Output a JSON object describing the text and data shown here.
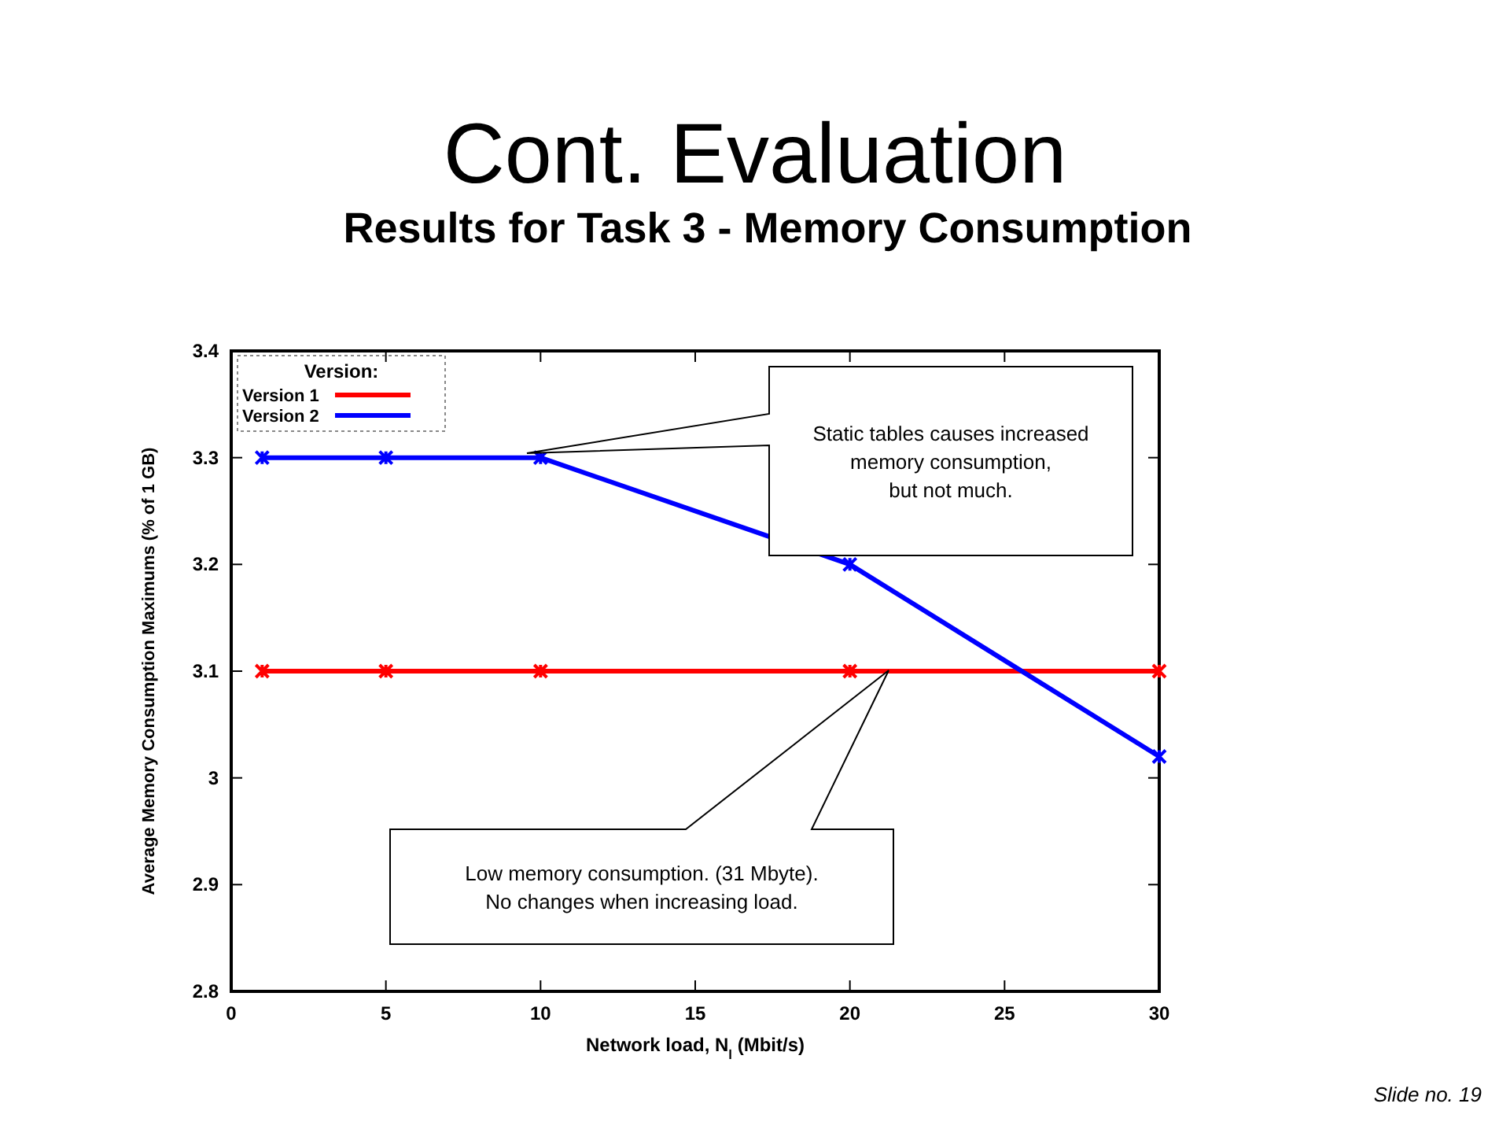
{
  "chart_data": {
    "type": "line",
    "title": "Cont. Evaluation",
    "subtitle": "Results for Task 3 -  Memory Consumption",
    "xlabel": "Network load, N$_{l}$ (Mbit/s)",
    "ylabel": "Average Memory Consumption Maximums (% of 1 GB)",
    "legend_title": "Version:",
    "legend": "top left",
    "marker": "cross",
    "line_style": "solid",
    "grid": false,
    "x": [
      1,
      5,
      10,
      20,
      30
    ],
    "series": [
      {
        "name": "Version 1",
        "color": "#ff0000",
        "values": [
          3.1,
          3.1,
          3.1,
          3.1,
          3.1
        ]
      },
      {
        "name": "Version 2",
        "color": "#0000ff",
        "values": [
          3.3,
          3.3,
          3.3,
          3.2,
          3.02
        ]
      }
    ],
    "xlim": [
      0,
      30
    ],
    "xticks": [
      0,
      5,
      10,
      15,
      20,
      25,
      30
    ],
    "ylim": [
      2.8,
      3.4
    ],
    "yticks": [
      2.8,
      2.9,
      3,
      3.1,
      3.2,
      3.3,
      3.4
    ],
    "annotations": [
      "Static tables causes increased\nmemory consumption,\nbut not much.",
      "Low memory consumption. (31 Mbyte).\nNo changes when increasing load.",
      "Slide no. 19"
    ]
  }
}
